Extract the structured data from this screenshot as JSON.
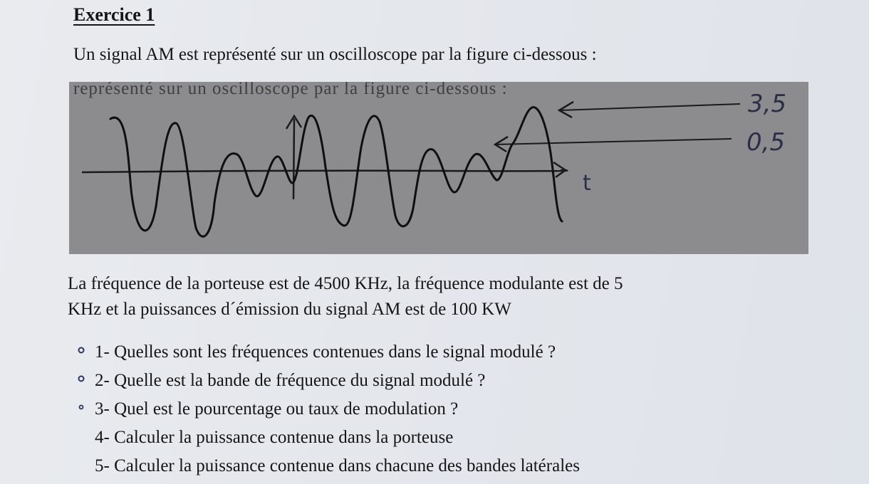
{
  "exercise": {
    "title": "Exercice 1",
    "intro": "Un signal AM est représenté sur un oscilloscope par la figure ci-dessous :"
  },
  "figure": {
    "caption": "représenté sur un oscilloscope par la figure ci-dessous :",
    "max_label": "3,5",
    "min_label": "0,5",
    "axis_label": "t",
    "background": "#8c8c8e",
    "ink": "#111111"
  },
  "statement": {
    "line1": "La fréquence de la porteuse est de 4500 KHz, la fréquence modulante est de 5",
    "line2": "KHz et la puissances d´émission du signal AM est de 100 KW"
  },
  "questions": [
    {
      "number": "1-",
      "text": "Quelles sont les fréquences contenues dans le signal modulé ?"
    },
    {
      "number": "2-",
      "text": "Quelle est la bande de fréquence du signal modulé ?"
    },
    {
      "number": "3-",
      "text": "Quel est le pourcentage ou taux de modulation ?"
    },
    {
      "number": "4-",
      "text": "Calculer la puissance contenue dans la porteuse"
    },
    {
      "number": "5-",
      "text": "Calculer la puissance contenue dans chacune des bandes latérales"
    }
  ]
}
